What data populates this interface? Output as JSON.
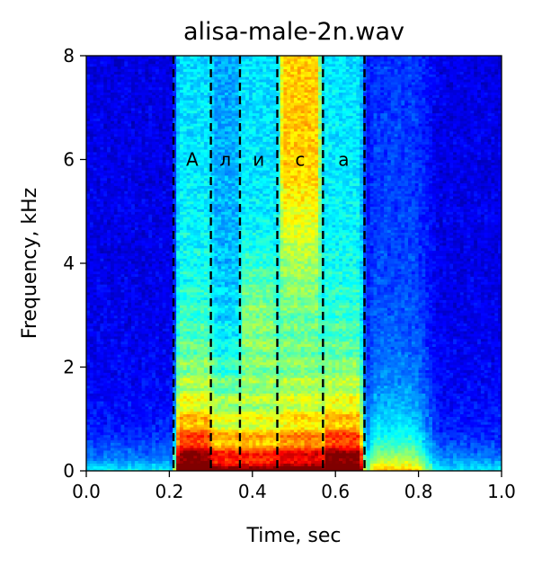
{
  "chart_data": {
    "type": "heatmap",
    "title": "alisa-male-2n.wav",
    "xlabel": "Time, sec",
    "ylabel": "Frequency, kHz",
    "xlim": [
      0.0,
      1.0
    ],
    "ylim": [
      0,
      8
    ],
    "xticks": [
      "0.0",
      "0.2",
      "0.4",
      "0.6",
      "0.8",
      "1.0"
    ],
    "yticks": [
      "0",
      "2",
      "4",
      "6",
      "8"
    ],
    "colormap": "jet",
    "colors": [
      "#000080",
      "#0000ff",
      "#0080ff",
      "#00ffff",
      "#80ff80",
      "#ffff00",
      "#ff8000",
      "#ff0000",
      "#800000"
    ],
    "boundaries_sec": [
      0.21,
      0.3,
      0.37,
      0.46,
      0.57,
      0.67
    ],
    "boundary_color": "#000000",
    "segments": [
      {
        "label": "А",
        "start": 0.21,
        "end": 0.3
      },
      {
        "label": "л",
        "start": 0.3,
        "end": 0.37
      },
      {
        "label": "и",
        "start": 0.37,
        "end": 0.46
      },
      {
        "label": "с",
        "start": 0.46,
        "end": 0.57
      },
      {
        "label": "а",
        "start": 0.57,
        "end": 0.67
      }
    ],
    "segment_label_freq_khz": 6.0,
    "grid": false
  }
}
